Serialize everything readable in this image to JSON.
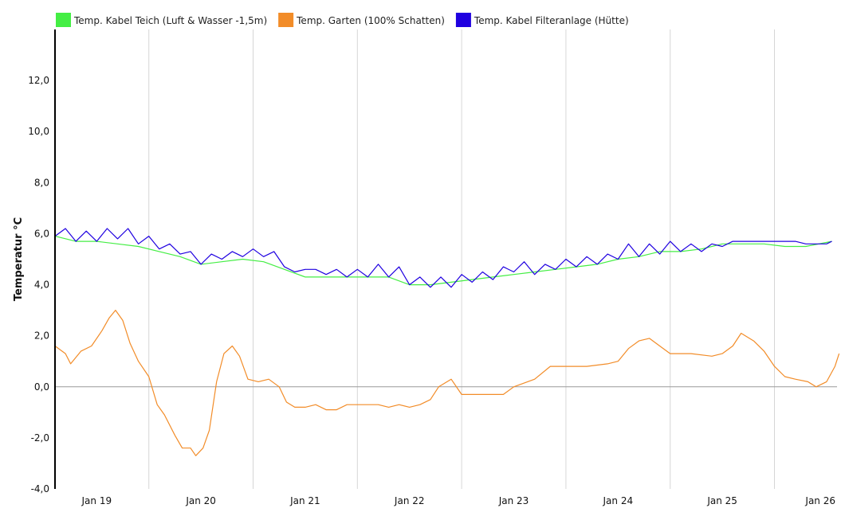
{
  "chart_data": {
    "type": "line",
    "ylabel": "Temperatur °C",
    "ylim": [
      -4.0,
      14.0
    ],
    "y_ticks": [
      "-4,0",
      "-2,0",
      "0,0",
      "2,0",
      "4,0",
      "6,0",
      "8,0",
      "10,0",
      "12,0"
    ],
    "y_tick_values": [
      -4,
      -2,
      0,
      2,
      4,
      6,
      8,
      10,
      12
    ],
    "x_range_days": [
      18.6,
      26.1
    ],
    "x_ticks": [
      "Jan 19",
      "Jan 20",
      "Jan 21",
      "Jan 22",
      "Jan 23",
      "Jan 24",
      "Jan 25",
      "Jan 26"
    ],
    "x_tick_days": [
      19,
      20,
      21,
      22,
      23,
      24,
      25,
      26
    ],
    "vertical_grid_days": [
      19.5,
      20.5,
      21.5,
      22.5,
      23.5,
      24.5,
      25.5
    ],
    "grid": true,
    "legend_position": "top-left",
    "series": [
      {
        "name": "Temp. Kabel Teich (Luft & Wasser -1,5m)",
        "color": "#44ee44",
        "points": [
          [
            18.6,
            5.9
          ],
          [
            18.8,
            5.7
          ],
          [
            19.0,
            5.7
          ],
          [
            19.2,
            5.6
          ],
          [
            19.4,
            5.5
          ],
          [
            19.6,
            5.3
          ],
          [
            19.8,
            5.1
          ],
          [
            20.0,
            4.8
          ],
          [
            20.2,
            4.9
          ],
          [
            20.4,
            5.0
          ],
          [
            20.6,
            4.9
          ],
          [
            20.8,
            4.6
          ],
          [
            21.0,
            4.3
          ],
          [
            21.2,
            4.3
          ],
          [
            21.4,
            4.3
          ],
          [
            21.6,
            4.3
          ],
          [
            21.8,
            4.3
          ],
          [
            22.0,
            4.0
          ],
          [
            22.2,
            4.0
          ],
          [
            22.4,
            4.1
          ],
          [
            22.6,
            4.2
          ],
          [
            22.8,
            4.3
          ],
          [
            23.0,
            4.4
          ],
          [
            23.2,
            4.5
          ],
          [
            23.4,
            4.6
          ],
          [
            23.6,
            4.7
          ],
          [
            23.8,
            4.8
          ],
          [
            24.0,
            5.0
          ],
          [
            24.2,
            5.1
          ],
          [
            24.4,
            5.3
          ],
          [
            24.6,
            5.3
          ],
          [
            24.8,
            5.4
          ],
          [
            25.0,
            5.6
          ],
          [
            25.2,
            5.6
          ],
          [
            25.4,
            5.6
          ],
          [
            25.6,
            5.5
          ],
          [
            25.8,
            5.5
          ],
          [
            26.05,
            5.7
          ]
        ]
      },
      {
        "name": "Temp. Garten (100% Schatten)",
        "color": "#f28c28",
        "points": [
          [
            18.6,
            1.6
          ],
          [
            18.7,
            1.3
          ],
          [
            18.75,
            0.9
          ],
          [
            18.85,
            1.4
          ],
          [
            18.95,
            1.6
          ],
          [
            19.05,
            2.2
          ],
          [
            19.12,
            2.7
          ],
          [
            19.18,
            3.0
          ],
          [
            19.25,
            2.6
          ],
          [
            19.32,
            1.7
          ],
          [
            19.4,
            1.0
          ],
          [
            19.5,
            0.4
          ],
          [
            19.58,
            -0.7
          ],
          [
            19.65,
            -1.1
          ],
          [
            19.75,
            -1.9
          ],
          [
            19.82,
            -2.4
          ],
          [
            19.9,
            -2.4
          ],
          [
            19.95,
            -2.7
          ],
          [
            20.02,
            -2.4
          ],
          [
            20.08,
            -1.7
          ],
          [
            20.15,
            0.2
          ],
          [
            20.22,
            1.3
          ],
          [
            20.3,
            1.6
          ],
          [
            20.37,
            1.2
          ],
          [
            20.45,
            0.3
          ],
          [
            20.55,
            0.2
          ],
          [
            20.65,
            0.3
          ],
          [
            20.75,
            0.0
          ],
          [
            20.82,
            -0.6
          ],
          [
            20.9,
            -0.8
          ],
          [
            21.0,
            -0.8
          ],
          [
            21.1,
            -0.7
          ],
          [
            21.2,
            -0.9
          ],
          [
            21.3,
            -0.9
          ],
          [
            21.4,
            -0.7
          ],
          [
            21.5,
            -0.7
          ],
          [
            21.6,
            -0.7
          ],
          [
            21.7,
            -0.7
          ],
          [
            21.8,
            -0.8
          ],
          [
            21.9,
            -0.7
          ],
          [
            22.0,
            -0.8
          ],
          [
            22.1,
            -0.7
          ],
          [
            22.2,
            -0.5
          ],
          [
            22.28,
            0.0
          ],
          [
            22.4,
            0.3
          ],
          [
            22.5,
            -0.3
          ],
          [
            22.7,
            -0.3
          ],
          [
            22.9,
            -0.3
          ],
          [
            23.0,
            0.0
          ],
          [
            23.2,
            0.3
          ],
          [
            23.35,
            0.8
          ],
          [
            23.5,
            0.8
          ],
          [
            23.7,
            0.8
          ],
          [
            23.9,
            0.9
          ],
          [
            24.0,
            1.0
          ],
          [
            24.1,
            1.5
          ],
          [
            24.2,
            1.8
          ],
          [
            24.3,
            1.9
          ],
          [
            24.4,
            1.6
          ],
          [
            24.5,
            1.3
          ],
          [
            24.6,
            1.3
          ],
          [
            24.7,
            1.3
          ],
          [
            24.9,
            1.2
          ],
          [
            25.0,
            1.3
          ],
          [
            25.1,
            1.6
          ],
          [
            25.18,
            2.1
          ],
          [
            25.3,
            1.8
          ],
          [
            25.4,
            1.4
          ],
          [
            25.5,
            0.8
          ],
          [
            25.6,
            0.4
          ],
          [
            25.7,
            0.3
          ],
          [
            25.82,
            0.2
          ],
          [
            25.9,
            0.0
          ],
          [
            26.0,
            0.2
          ],
          [
            26.08,
            0.8
          ],
          [
            26.12,
            1.3
          ]
        ]
      },
      {
        "name": "Temp. Kabel Filteranlage (Hütte)",
        "color": "#1f00e0",
        "points": [
          [
            18.6,
            5.9
          ],
          [
            18.7,
            6.2
          ],
          [
            18.8,
            5.7
          ],
          [
            18.9,
            6.1
          ],
          [
            19.0,
            5.7
          ],
          [
            19.1,
            6.2
          ],
          [
            19.2,
            5.8
          ],
          [
            19.3,
            6.2
          ],
          [
            19.4,
            5.6
          ],
          [
            19.5,
            5.9
          ],
          [
            19.6,
            5.4
          ],
          [
            19.7,
            5.6
          ],
          [
            19.8,
            5.2
          ],
          [
            19.9,
            5.3
          ],
          [
            20.0,
            4.8
          ],
          [
            20.1,
            5.2
          ],
          [
            20.2,
            5.0
          ],
          [
            20.3,
            5.3
          ],
          [
            20.4,
            5.1
          ],
          [
            20.5,
            5.4
          ],
          [
            20.6,
            5.1
          ],
          [
            20.7,
            5.3
          ],
          [
            20.8,
            4.7
          ],
          [
            20.9,
            4.5
          ],
          [
            21.0,
            4.6
          ],
          [
            21.1,
            4.6
          ],
          [
            21.2,
            4.4
          ],
          [
            21.3,
            4.6
          ],
          [
            21.4,
            4.3
          ],
          [
            21.5,
            4.6
          ],
          [
            21.6,
            4.3
          ],
          [
            21.7,
            4.8
          ],
          [
            21.8,
            4.3
          ],
          [
            21.9,
            4.7
          ],
          [
            22.0,
            4.0
          ],
          [
            22.1,
            4.3
          ],
          [
            22.2,
            3.9
          ],
          [
            22.3,
            4.3
          ],
          [
            22.4,
            3.9
          ],
          [
            22.5,
            4.4
          ],
          [
            22.6,
            4.1
          ],
          [
            22.7,
            4.5
          ],
          [
            22.8,
            4.2
          ],
          [
            22.9,
            4.7
          ],
          [
            23.0,
            4.5
          ],
          [
            23.1,
            4.9
          ],
          [
            23.2,
            4.4
          ],
          [
            23.3,
            4.8
          ],
          [
            23.4,
            4.6
          ],
          [
            23.5,
            5.0
          ],
          [
            23.6,
            4.7
          ],
          [
            23.7,
            5.1
          ],
          [
            23.8,
            4.8
          ],
          [
            23.9,
            5.2
          ],
          [
            24.0,
            5.0
          ],
          [
            24.1,
            5.6
          ],
          [
            24.2,
            5.1
          ],
          [
            24.3,
            5.6
          ],
          [
            24.4,
            5.2
          ],
          [
            24.5,
            5.7
          ],
          [
            24.6,
            5.3
          ],
          [
            24.7,
            5.6
          ],
          [
            24.8,
            5.3
          ],
          [
            24.9,
            5.6
          ],
          [
            25.0,
            5.5
          ],
          [
            25.1,
            5.7
          ],
          [
            25.3,
            5.7
          ],
          [
            25.5,
            5.7
          ],
          [
            25.6,
            5.7
          ],
          [
            25.7,
            5.7
          ],
          [
            25.8,
            5.6
          ],
          [
            25.9,
            5.6
          ],
          [
            26.0,
            5.6
          ],
          [
            26.05,
            5.7
          ]
        ]
      }
    ]
  }
}
